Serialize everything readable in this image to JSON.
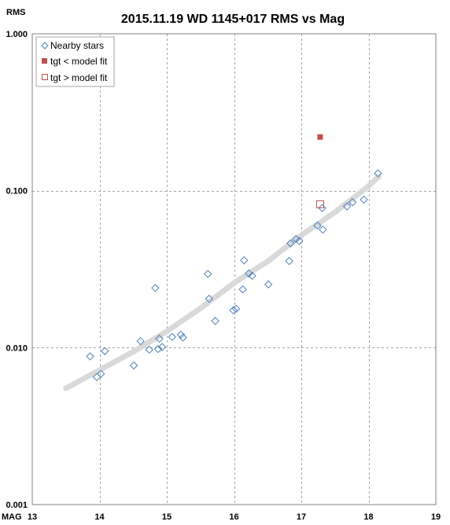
{
  "chart_data": {
    "type": "scatter",
    "title": "2015.11.19 WD 1145+017 RMS vs Mag",
    "xlabel": "MAG",
    "ylabel": "RMS",
    "xlim": [
      13,
      19
    ],
    "ylim": [
      0.001,
      1.0
    ],
    "yscale": "log",
    "grid": true,
    "legend_position": "top-left",
    "x_ticks": [
      {
        "value": 13,
        "label": "13"
      },
      {
        "value": 14,
        "label": "14"
      },
      {
        "value": 15,
        "label": "15"
      },
      {
        "value": 16,
        "label": "16"
      },
      {
        "value": 17,
        "label": "17"
      },
      {
        "value": 18,
        "label": "18"
      },
      {
        "value": 19,
        "label": "19"
      }
    ],
    "y_ticks": [
      {
        "value": 0.001,
        "label": "0.001"
      },
      {
        "value": 0.01,
        "label": "0.010"
      },
      {
        "value": 0.1,
        "label": "0.100"
      },
      {
        "value": 1.0,
        "label": "1.000"
      }
    ],
    "series": [
      {
        "name": "Nearby stars",
        "marker": "diamond-open",
        "color": "#4f81bd",
        "points": [
          [
            13.86,
            0.0088
          ],
          [
            13.96,
            0.0065
          ],
          [
            14.02,
            0.0068
          ],
          [
            14.08,
            0.0095
          ],
          [
            14.51,
            0.0077
          ],
          [
            14.61,
            0.011
          ],
          [
            14.74,
            0.0097
          ],
          [
            14.83,
            0.024
          ],
          [
            14.87,
            0.0098
          ],
          [
            14.89,
            0.0114
          ],
          [
            14.93,
            0.0101
          ],
          [
            15.08,
            0.0117
          ],
          [
            15.21,
            0.0121
          ],
          [
            15.24,
            0.0116
          ],
          [
            15.61,
            0.0295
          ],
          [
            15.63,
            0.0205
          ],
          [
            15.72,
            0.0148
          ],
          [
            15.99,
            0.0173
          ],
          [
            16.03,
            0.0177
          ],
          [
            16.13,
            0.0235
          ],
          [
            16.15,
            0.036
          ],
          [
            16.22,
            0.0297
          ],
          [
            16.27,
            0.0287
          ],
          [
            16.51,
            0.0253
          ],
          [
            16.82,
            0.0356
          ],
          [
            16.84,
            0.0462
          ],
          [
            16.92,
            0.0492
          ],
          [
            16.97,
            0.0478
          ],
          [
            17.24,
            0.06
          ],
          [
            17.31,
            0.0775
          ],
          [
            17.32,
            0.0565
          ],
          [
            17.68,
            0.0795
          ],
          [
            17.76,
            0.0845
          ],
          [
            17.93,
            0.0878
          ],
          [
            18.14,
            0.129
          ]
        ]
      },
      {
        "name": "tgt < model fit",
        "marker": "square-filled",
        "color": "#c0504d",
        "points": [
          [
            17.28,
            0.22
          ]
        ]
      },
      {
        "name": "tgt > model fit",
        "marker": "square-open",
        "color": "#c0504d",
        "points": [
          [
            17.28,
            0.082
          ]
        ]
      }
    ],
    "model_fit": {
      "color": "#d9d9d9",
      "points": [
        [
          13.5,
          0.0055
        ],
        [
          14.0,
          0.0072
        ],
        [
          14.5,
          0.0094
        ],
        [
          15.0,
          0.0127
        ],
        [
          15.5,
          0.0178
        ],
        [
          16.0,
          0.0258
        ],
        [
          16.5,
          0.0355
        ],
        [
          17.0,
          0.052
        ],
        [
          17.5,
          0.073
        ],
        [
          18.0,
          0.107
        ],
        [
          18.15,
          0.123
        ]
      ]
    }
  }
}
